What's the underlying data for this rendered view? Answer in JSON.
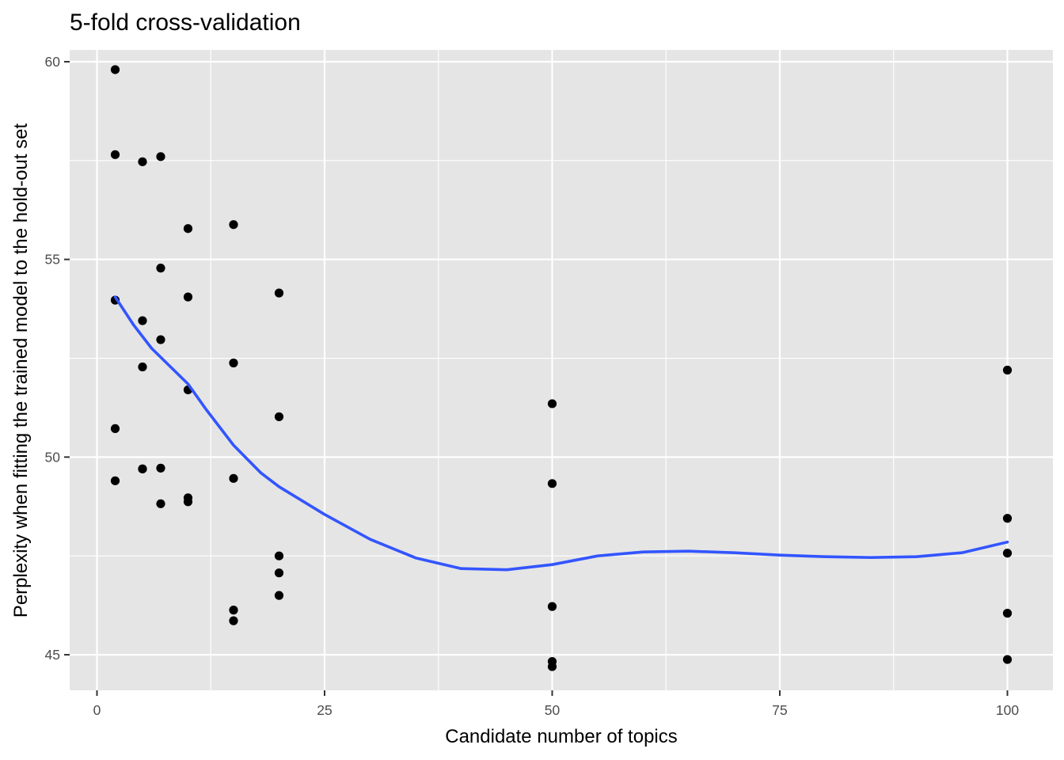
{
  "chart_data": {
    "type": "scatter",
    "title": "5-fold cross-validation",
    "xlabel": "Candidate number of topics",
    "ylabel": "Perplexity when fitting the trained model to the hold-out set",
    "xlim": [
      -3,
      105
    ],
    "ylim": [
      44.1,
      60.3
    ],
    "x_ticks": [
      0,
      25,
      50,
      75,
      100
    ],
    "x_tick_labels": [
      "0",
      "25",
      "50",
      "75",
      "100"
    ],
    "y_ticks": [
      45,
      50,
      55,
      60
    ],
    "y_tick_labels": [
      "45",
      "50",
      "55",
      "60"
    ],
    "grid": true,
    "legend": "none",
    "colors": {
      "panel": "#e5e5e5",
      "grid_major": "#ffffff",
      "points": "#000000",
      "smooth": "#3355ff"
    },
    "points": [
      {
        "x": 2,
        "y": 59.8
      },
      {
        "x": 2,
        "y": 57.65
      },
      {
        "x": 2,
        "y": 53.97
      },
      {
        "x": 2,
        "y": 50.72
      },
      {
        "x": 2,
        "y": 49.4
      },
      {
        "x": 5,
        "y": 57.47
      },
      {
        "x": 5,
        "y": 53.45
      },
      {
        "x": 5,
        "y": 52.28
      },
      {
        "x": 5,
        "y": 49.7
      },
      {
        "x": 5,
        "y": 49.7
      },
      {
        "x": 7,
        "y": 57.6
      },
      {
        "x": 7,
        "y": 54.78
      },
      {
        "x": 7,
        "y": 52.97
      },
      {
        "x": 7,
        "y": 49.72
      },
      {
        "x": 7,
        "y": 48.82
      },
      {
        "x": 10,
        "y": 55.78
      },
      {
        "x": 10,
        "y": 54.05
      },
      {
        "x": 10,
        "y": 51.7
      },
      {
        "x": 10,
        "y": 48.97
      },
      {
        "x": 10,
        "y": 48.87
      },
      {
        "x": 15,
        "y": 55.88
      },
      {
        "x": 15,
        "y": 52.38
      },
      {
        "x": 15,
        "y": 49.46
      },
      {
        "x": 15,
        "y": 46.13
      },
      {
        "x": 15,
        "y": 45.86
      },
      {
        "x": 20,
        "y": 54.15
      },
      {
        "x": 20,
        "y": 51.02
      },
      {
        "x": 20,
        "y": 47.5
      },
      {
        "x": 20,
        "y": 47.07
      },
      {
        "x": 20,
        "y": 46.5
      },
      {
        "x": 50,
        "y": 51.35
      },
      {
        "x": 50,
        "y": 49.33
      },
      {
        "x": 50,
        "y": 46.22
      },
      {
        "x": 50,
        "y": 44.83
      },
      {
        "x": 50,
        "y": 44.7
      },
      {
        "x": 100,
        "y": 52.2
      },
      {
        "x": 100,
        "y": 48.45
      },
      {
        "x": 100,
        "y": 47.57
      },
      {
        "x": 100,
        "y": 46.05
      },
      {
        "x": 100,
        "y": 44.88
      }
    ],
    "smooth_line": {
      "x": [
        2,
        4,
        6,
        8,
        10,
        12,
        15,
        18,
        20,
        25,
        30,
        35,
        40,
        45,
        50,
        55,
        60,
        65,
        70,
        75,
        80,
        85,
        90,
        95,
        100
      ],
      "y": [
        54.05,
        53.35,
        52.75,
        52.3,
        51.85,
        51.2,
        50.3,
        49.6,
        49.25,
        48.55,
        47.92,
        47.45,
        47.18,
        47.15,
        47.28,
        47.5,
        47.6,
        47.62,
        47.58,
        47.52,
        47.48,
        47.46,
        47.48,
        47.58,
        47.85
      ]
    }
  }
}
